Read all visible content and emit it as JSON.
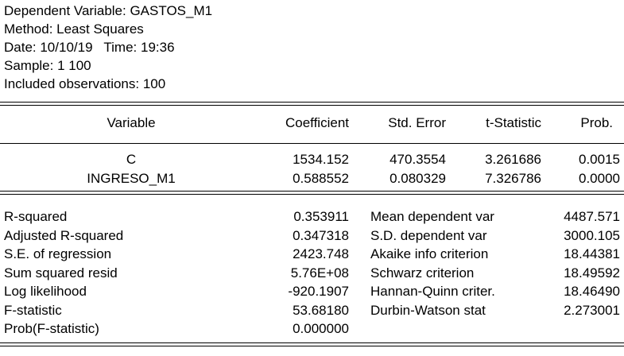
{
  "header": {
    "dependent": "Dependent Variable: GASTOS_M1",
    "method": "Method: Least Squares",
    "date": "Date: 10/10/19   Time: 19:36",
    "sample": "Sample: 1 100",
    "observations": "Included observations: 100"
  },
  "coef_table": {
    "columns": [
      "Variable",
      "Coefficient",
      "Std. Error",
      "t-Statistic",
      "Prob."
    ],
    "rows": [
      [
        "C",
        "1534.152",
        "470.3554",
        "3.261686",
        "0.0015"
      ],
      [
        "INGRESO_M1",
        "0.588552",
        "0.080329",
        "7.326786",
        "0.0000"
      ]
    ]
  },
  "stats": {
    "left": [
      {
        "label": "R-squared",
        "value": "0.353911"
      },
      {
        "label": "Adjusted R-squared",
        "value": "0.347318"
      },
      {
        "label": "S.E. of regression",
        "value": "2423.748"
      },
      {
        "label": "Sum squared resid",
        "value": "5.76E+08"
      },
      {
        "label": "Log likelihood",
        "value": "-920.1907"
      },
      {
        "label": "F-statistic",
        "value": "53.68180"
      },
      {
        "label": "Prob(F-statistic)",
        "value": "0.000000"
      }
    ],
    "right": [
      {
        "label": "Mean dependent var",
        "value": "4487.571"
      },
      {
        "label": "S.D. dependent var",
        "value": "3000.105"
      },
      {
        "label": "Akaike info criterion",
        "value": "18.44381"
      },
      {
        "label": "Schwarz criterion",
        "value": "18.49592"
      },
      {
        "label": "Hannan-Quinn criter.",
        "value": "18.46490"
      },
      {
        "label": "Durbin-Watson stat",
        "value": "2.273001"
      }
    ]
  }
}
